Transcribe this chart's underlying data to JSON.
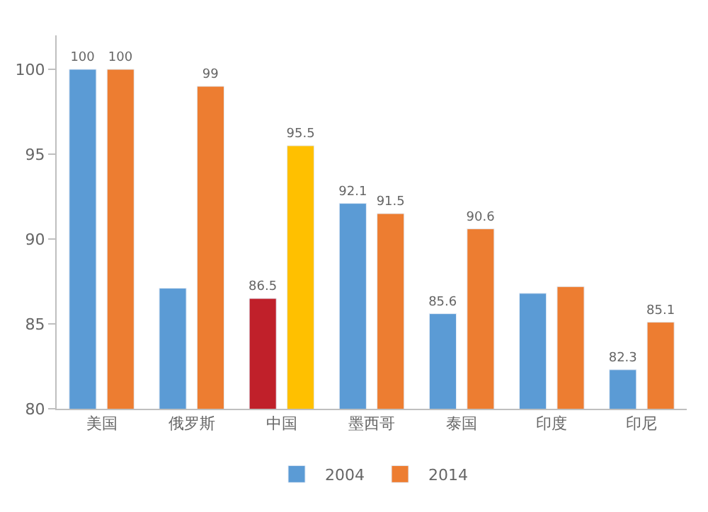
{
  "chart_data": {
    "type": "bar",
    "categories": [
      "美国",
      "俄罗斯",
      "中国",
      "墨西哥",
      "泰国",
      "印度",
      "印尼"
    ],
    "series": [
      {
        "name": "2004",
        "color": "#5b9bd5",
        "colors": [
          "#5b9bd5",
          "#5b9bd5",
          "#c0202a",
          "#5b9bd5",
          "#5b9bd5",
          "#5b9bd5",
          "#5b9bd5"
        ],
        "values": [
          100,
          87.1,
          86.5,
          92.1,
          85.6,
          86.8,
          82.3
        ],
        "value_labels": [
          "100",
          null,
          "86.5",
          "92.1",
          "85.6",
          null,
          "82.3"
        ]
      },
      {
        "name": "2014",
        "color": "#ed7d31",
        "colors": [
          "#ed7d31",
          "#ed7d31",
          "#ffc000",
          "#ed7d31",
          "#ed7d31",
          "#ed7d31",
          "#ed7d31"
        ],
        "values": [
          100,
          99,
          95.5,
          91.5,
          90.6,
          87.2,
          85.1
        ],
        "value_labels": [
          "100",
          "99",
          "95.5",
          "91.5",
          "90.6",
          null,
          "85.1"
        ]
      }
    ],
    "ylim": [
      80,
      102
    ],
    "yticks": [
      80,
      85,
      90,
      95,
      100
    ],
    "legend": "bottom"
  }
}
